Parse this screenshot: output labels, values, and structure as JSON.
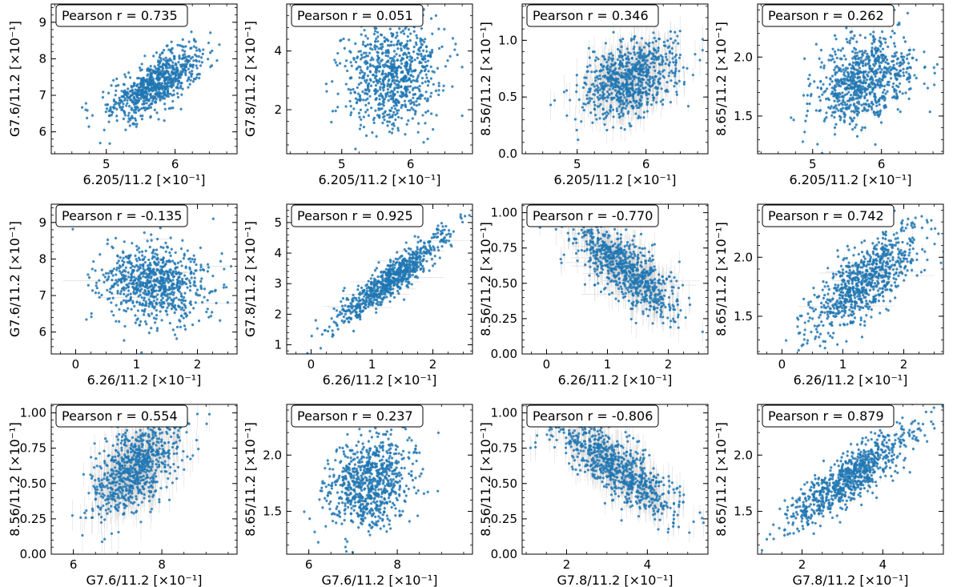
{
  "figure": {
    "units_suffix": "[×10⁻¹]",
    "point_color": "#1f77b4",
    "errorbar_color": "#c8c8c8"
  },
  "chart_data": [
    {
      "type": "scatter",
      "title": "",
      "xlabel": "6.205/11.2 [×10⁻¹]",
      "ylabel": "G7.6/11.2 [×10⁻¹]",
      "xlim": [
        4.2,
        6.9
      ],
      "ylim": [
        5.4,
        9.5
      ],
      "xticks": [
        5,
        6
      ],
      "yticks": [
        6,
        7,
        8,
        9
      ],
      "annotation": "Pearson r = 0.735",
      "pearson_r": 0.735,
      "n_points": 800,
      "x_mean": 5.75,
      "x_sd": 0.35,
      "y_mean": 7.35,
      "y_sd": 0.5,
      "x_err": 0.02,
      "y_err": 0.05
    },
    {
      "type": "scatter",
      "title": "",
      "xlabel": "6.205/11.2 [×10⁻¹]",
      "ylabel": "G7.8/11.2 [×10⁻¹]",
      "xlim": [
        4.2,
        6.9
      ],
      "ylim": [
        0.5,
        5.6
      ],
      "xticks": [
        5,
        6
      ],
      "yticks": [
        2,
        4
      ],
      "annotation": "Pearson r = 0.051",
      "pearson_r": 0.051,
      "n_points": 800,
      "x_mean": 5.75,
      "x_sd": 0.35,
      "y_mean": 3.2,
      "y_sd": 0.9,
      "x_err": 0.02,
      "y_err": 0.05
    },
    {
      "type": "scatter",
      "title": "",
      "xlabel": "6.205/11.2 [×10⁻¹]",
      "ylabel": "8.56/11.2 [×10⁻¹]",
      "xlim": [
        4.2,
        6.9
      ],
      "ylim": [
        0.0,
        1.32
      ],
      "xticks": [
        5,
        6
      ],
      "yticks": [
        0.0,
        0.5,
        1.0
      ],
      "annotation": "Pearson r = 0.346",
      "pearson_r": 0.346,
      "n_points": 800,
      "x_mean": 5.75,
      "x_sd": 0.35,
      "y_mean": 0.65,
      "y_sd": 0.18,
      "x_err": 0.02,
      "y_err": 0.08
    },
    {
      "type": "scatter",
      "title": "",
      "xlabel": "6.205/11.2 [×10⁻¹]",
      "ylabel": "8.65/11.2 [×10⁻¹]",
      "xlim": [
        4.2,
        6.9
      ],
      "ylim": [
        1.18,
        2.45
      ],
      "xticks": [
        5,
        6
      ],
      "yticks": [
        1.5,
        2.0
      ],
      "annotation": "Pearson r = 0.262",
      "pearson_r": 0.262,
      "n_points": 800,
      "x_mean": 5.75,
      "x_sd": 0.35,
      "y_mean": 1.8,
      "y_sd": 0.2,
      "x_err": 0.02,
      "y_err": 0.02
    },
    {
      "type": "scatter",
      "title": "",
      "xlabel": "6.26/11.2 [×10⁻¹]",
      "ylabel": "G7.6/11.2 [×10⁻¹]",
      "xlim": [
        -0.4,
        2.65
      ],
      "ylim": [
        5.4,
        9.5
      ],
      "xticks": [
        0,
        1,
        2
      ],
      "yticks": [
        6,
        7,
        8,
        9
      ],
      "annotation": "Pearson r = -0.135",
      "pearson_r": -0.135,
      "n_points": 800,
      "x_mean": 1.3,
      "x_sd": 0.45,
      "y_mean": 7.35,
      "y_sd": 0.55,
      "x_err": 0.1,
      "y_err": 0.05
    },
    {
      "type": "scatter",
      "title": "",
      "xlabel": "6.26/11.2 [×10⁻¹]",
      "ylabel": "G7.8/11.2 [×10⁻¹]",
      "xlim": [
        -0.4,
        2.65
      ],
      "ylim": [
        0.7,
        5.6
      ],
      "xticks": [
        0,
        1,
        2
      ],
      "yticks": [
        1,
        2,
        3,
        4,
        5
      ],
      "annotation": "Pearson r = 0.925",
      "pearson_r": 0.925,
      "n_points": 800,
      "x_mean": 1.35,
      "x_sd": 0.45,
      "y_mean": 3.2,
      "y_sd": 0.75,
      "x_err": 0.1,
      "y_err": 0.05
    },
    {
      "type": "scatter",
      "title": "",
      "xlabel": "6.26/11.2 [×10⁻¹]",
      "ylabel": "8.56/11.2 [×10⁻¹]",
      "xlim": [
        -0.4,
        2.65
      ],
      "ylim": [
        0.0,
        1.06
      ],
      "xticks": [
        0,
        1,
        2
      ],
      "yticks": [
        0.0,
        0.25,
        0.5,
        0.75,
        1.0
      ],
      "annotation": "Pearson r = -0.770",
      "pearson_r": -0.77,
      "n_points": 800,
      "x_mean": 1.3,
      "x_sd": 0.45,
      "y_mean": 0.6,
      "y_sd": 0.18,
      "x_err": 0.1,
      "y_err": 0.06
    },
    {
      "type": "scatter",
      "title": "",
      "xlabel": "6.26/11.2 [×10⁻¹]",
      "ylabel": "8.65/11.2 [×10⁻¹]",
      "xlim": [
        -0.4,
        2.65
      ],
      "ylim": [
        1.18,
        2.45
      ],
      "xticks": [
        0,
        1,
        2
      ],
      "yticks": [
        1.5,
        2.0
      ],
      "annotation": "Pearson r = 0.742",
      "pearson_r": 0.742,
      "n_points": 800,
      "x_mean": 1.35,
      "x_sd": 0.45,
      "y_mean": 1.8,
      "y_sd": 0.22,
      "x_err": 0.1,
      "y_err": 0.02
    },
    {
      "type": "scatter",
      "title": "",
      "xlabel": "G7.6/11.2 [×10⁻¹]",
      "ylabel": "8.56/11.2 [×10⁻¹]",
      "xlim": [
        5.5,
        9.7
      ],
      "ylim": [
        0.0,
        1.06
      ],
      "xticks": [
        6,
        8
      ],
      "yticks": [
        0.0,
        0.25,
        0.5,
        0.75,
        1.0
      ],
      "annotation": "Pearson r = 0.554",
      "pearson_r": 0.554,
      "n_points": 800,
      "x_mean": 7.4,
      "x_sd": 0.5,
      "y_mean": 0.62,
      "y_sd": 0.18,
      "x_err": 0.03,
      "y_err": 0.07
    },
    {
      "type": "scatter",
      "title": "",
      "xlabel": "G7.6/11.2 [×10⁻¹]",
      "ylabel": "8.65/11.2 [×10⁻¹]",
      "xlim": [
        5.5,
        9.7
      ],
      "ylim": [
        1.12,
        2.45
      ],
      "xticks": [
        6,
        8
      ],
      "yticks": [
        1.5,
        2.0
      ],
      "annotation": "Pearson r = 0.237",
      "pearson_r": 0.237,
      "n_points": 800,
      "x_mean": 7.4,
      "x_sd": 0.5,
      "y_mean": 1.75,
      "y_sd": 0.2,
      "x_err": 0.03,
      "y_err": 0.02
    },
    {
      "type": "scatter",
      "title": "",
      "xlabel": "G7.8/11.2 [×10⁻¹]",
      "ylabel": "8.56/11.2 [×10⁻¹]",
      "xlim": [
        0.9,
        5.5
      ],
      "ylim": [
        0.0,
        1.06
      ],
      "xticks": [
        2,
        4
      ],
      "yticks": [
        0.0,
        0.25,
        0.5,
        0.75,
        1.0
      ],
      "annotation": "Pearson r = -0.806",
      "pearson_r": -0.806,
      "n_points": 800,
      "x_mean": 3.2,
      "x_sd": 0.8,
      "y_mean": 0.62,
      "y_sd": 0.18,
      "x_err": 0.03,
      "y_err": 0.06
    },
    {
      "type": "scatter",
      "title": "",
      "xlabel": "G7.8/11.2 [×10⁻¹]",
      "ylabel": "8.65/11.2 [×10⁻¹]",
      "xlim": [
        0.9,
        5.5
      ],
      "ylim": [
        1.12,
        2.45
      ],
      "xticks": [
        2,
        4
      ],
      "yticks": [
        1.5,
        2.0
      ],
      "annotation": "Pearson r = 0.879",
      "pearson_r": 0.879,
      "n_points": 800,
      "x_mean": 3.2,
      "x_sd": 0.8,
      "y_mean": 1.8,
      "y_sd": 0.22,
      "x_err": 0.03,
      "y_err": 0.02
    }
  ]
}
